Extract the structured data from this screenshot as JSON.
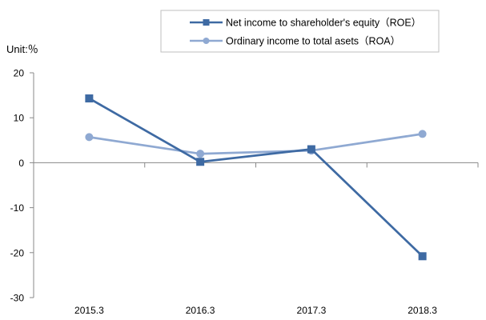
{
  "chart_data": {
    "type": "line",
    "unit_label": "Unit:％",
    "categories": [
      "2015.3",
      "2016.3",
      "2017.3",
      "2018.3"
    ],
    "ylim": [
      -30,
      20
    ],
    "yticks": [
      20,
      10,
      0,
      -10,
      -20,
      -30
    ],
    "grid": false,
    "legend_position": "top-right",
    "series": [
      {
        "name": "Net income to shareholder's equity（ROE）",
        "values": [
          14.3,
          0.2,
          3.0,
          -20.8
        ],
        "color": "#3e6aa3",
        "marker": "square"
      },
      {
        "name": "Ordinary income to total asets（ROA）",
        "values": [
          5.7,
          2.0,
          2.7,
          6.4
        ],
        "color": "#8fa9d2",
        "marker": "circle"
      }
    ]
  }
}
